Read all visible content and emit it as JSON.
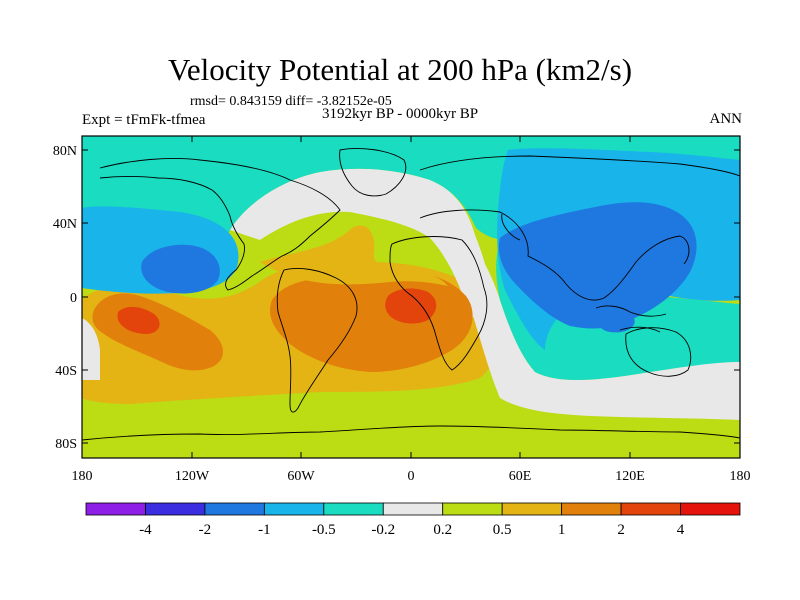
{
  "title": "Velocity Potential at 200 hPa (km2/s)",
  "stats": "rmsd= 0.843159 diff= -3.82152e-05",
  "left_label": "Expt = tFmFk-tfmea",
  "center_label": "3192kyr BP - 0000kyr BP",
  "right_label": "ANN",
  "lat_ticks": [
    "80N",
    "40N",
    "0",
    "40S",
    "80S"
  ],
  "lon_ticks": [
    "180",
    "120W",
    "60W",
    "0",
    "60E",
    "120E",
    "180"
  ],
  "colorbar": {
    "colors": [
      "#8e1fe6",
      "#3b2de0",
      "#1f78e0",
      "#19b4ea",
      "#19dcc0",
      "#e8e8e8",
      "#bcdc14",
      "#e4b414",
      "#e2800c",
      "#e2440c",
      "#e4140c"
    ],
    "labels": [
      "-4",
      "-2",
      "-1",
      "-0.5",
      "-0.2",
      "0.2",
      "0.5",
      "1",
      "2",
      "4"
    ]
  },
  "colors": {
    "teal": "#19dcc0",
    "cyan": "#19b4ea",
    "blue": "#1f78e0",
    "gray": "#e8e8e8",
    "lime": "#bcdc14",
    "orange_light": "#e4b414",
    "orange": "#e2800c",
    "red_orange": "#e2440c"
  }
}
